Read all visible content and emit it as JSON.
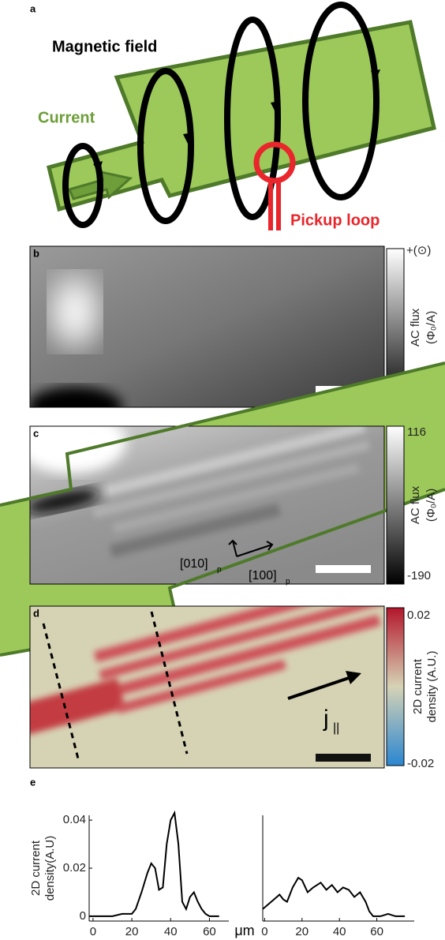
{
  "panels": {
    "a": {
      "label": "a",
      "magnetic_field": "Magnetic field",
      "current": "Current",
      "pickup_loop": "Pickup loop"
    },
    "b": {
      "label": "b",
      "colorbar_title": "AC flux",
      "colorbar_unit": "(Φ₀/A)",
      "colorbar_max": "+(⊙)",
      "colorbar_min": "-(⊗)"
    },
    "c": {
      "label": "c",
      "colorbar_title": "AC flux",
      "colorbar_unit": "(Φ₀/A)",
      "colorbar_max": 116,
      "colorbar_min": -190,
      "axis1": "[010]",
      "axis2": "[100]",
      "subscript": "p"
    },
    "d": {
      "label": "d",
      "colorbar_title": [
        "2D current",
        "density (A.U.)"
      ],
      "colorbar_max": 0.02,
      "colorbar_min": -0.02,
      "arrow_label": "j",
      "arrow_subscript": "||"
    }
  },
  "chart_data": [
    {
      "type": "line",
      "label": "e",
      "ylabel": [
        "2D current",
        "density(A.U)"
      ],
      "xlabel": "μm",
      "color": "#000000",
      "x": [
        -2,
        0,
        5,
        10,
        15,
        20,
        22,
        25,
        28,
        30,
        32,
        34,
        36,
        38,
        40,
        42,
        44,
        46,
        48,
        50,
        52,
        54,
        56,
        58,
        60,
        62,
        65
      ],
      "values": [
        0,
        0,
        0,
        0,
        0.001,
        0.001,
        0.003,
        0.01,
        0.018,
        0.022,
        0.02,
        0.011,
        0.012,
        0.03,
        0.04,
        0.043,
        0.03,
        0.006,
        0.003,
        0.008,
        0.01,
        0.006,
        0.003,
        0.001,
        0,
        0,
        0
      ],
      "xlim": [
        -2,
        70
      ],
      "ylim": [
        -0.002,
        0.042
      ],
      "xticks": [
        0,
        20,
        40,
        60
      ],
      "yticks": [
        0,
        0.02,
        0.04
      ]
    },
    {
      "type": "line",
      "color": "#000000",
      "x": [
        -1,
        2,
        5,
        8,
        10,
        12,
        15,
        18,
        20,
        23,
        26,
        30,
        33,
        36,
        39,
        42,
        45,
        48,
        51,
        54,
        56,
        58,
        62,
        66,
        70,
        75
      ],
      "values": [
        0.003,
        0.005,
        0.007,
        0.009,
        0.007,
        0.006,
        0.012,
        0.016,
        0.015,
        0.01,
        0.012,
        0.014,
        0.011,
        0.013,
        0.01,
        0.012,
        0.011,
        0.008,
        0.01,
        0.006,
        0.002,
        0,
        0,
        0.001,
        0,
        0
      ],
      "xlim": [
        -1,
        80
      ],
      "ylim": [
        -0.002,
        0.042
      ],
      "xticks": [
        0,
        20,
        40,
        60
      ]
    }
  ]
}
